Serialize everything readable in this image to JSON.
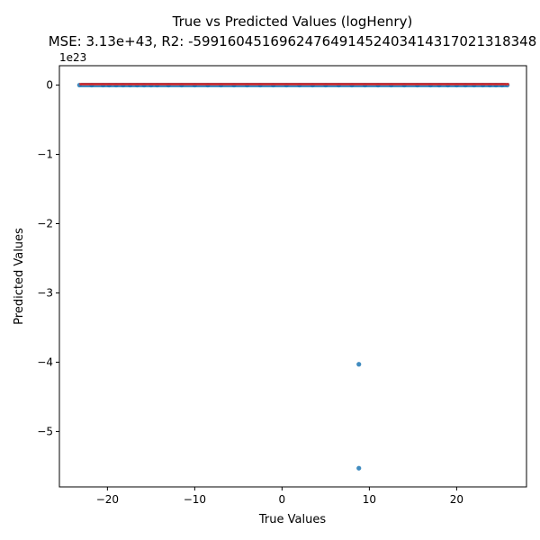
{
  "chart_data": {
    "type": "scatter",
    "title": "True vs Predicted Values (logHenry)",
    "subtitle": "MSE: 3.13e+43, R2: -5991604516962476491452403414317021318348",
    "xlabel": "True Values",
    "ylabel": "Predicted Values",
    "y_offset_label": "1e23",
    "xlim": [
      -25.5,
      28.0
    ],
    "ylim": [
      -5.8,
      0.28
    ],
    "x_ticks": [
      -20,
      -10,
      0,
      10,
      20
    ],
    "x_tick_labels": [
      "−20",
      "−10",
      "0",
      "10",
      "20"
    ],
    "y_ticks": [
      0,
      -1,
      -2,
      -3,
      -4,
      -5
    ],
    "y_tick_labels": [
      "0",
      "−1",
      "−2",
      "−3",
      "−4",
      "−5"
    ],
    "y_scale_note": "y values in units of 1e23",
    "grid": false,
    "points_color": "#1f77b4",
    "line_color": "#d62728",
    "series": [
      {
        "values_note": "dense cluster of points along y = 0 for x from about -23 to 26, plus two outliers",
        "x": [
          -23.2,
          -21.8,
          -20.5,
          -19.8,
          -19.0,
          -18.2,
          -17.4,
          -16.6,
          -15.8,
          -15.0,
          -14.3,
          -13.0,
          -11.5,
          -10.0,
          -8.5,
          -7.0,
          -5.5,
          -4.0,
          -2.5,
          -1.0,
          0.5,
          2.0,
          3.5,
          5.0,
          6.5,
          8.0,
          9.5,
          11.0,
          12.5,
          14.0,
          15.5,
          17.0,
          18.0,
          19.0,
          20.0,
          21.0,
          22.0,
          23.0,
          23.8,
          24.5,
          25.2,
          25.8,
          8.8,
          8.8
        ],
        "y": [
          0,
          0,
          0,
          0,
          0,
          0,
          0,
          0,
          0,
          0,
          0,
          0,
          0,
          0,
          0,
          0,
          0,
          0,
          0,
          0,
          0,
          0,
          0,
          0,
          0,
          0,
          0,
          0,
          0,
          0,
          0,
          0,
          0,
          0,
          0,
          0,
          0,
          0,
          0,
          0,
          0,
          0,
          -4.03,
          -5.53
        ]
      }
    ],
    "reference_line": {
      "x": [
        -23.2,
        26.0
      ],
      "y": [
        0,
        0
      ]
    }
  }
}
